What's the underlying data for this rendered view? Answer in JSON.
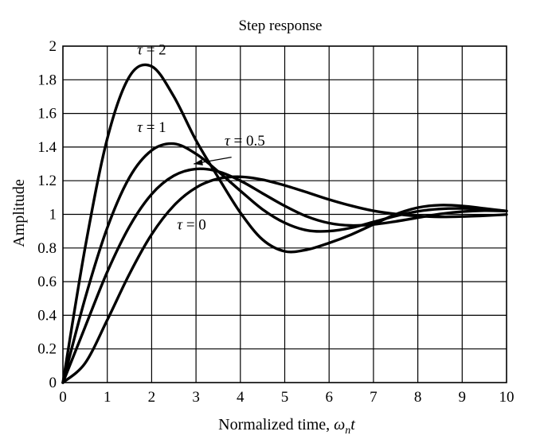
{
  "chart_data": {
    "type": "line",
    "title": "Step response",
    "xlabel_prefix": "Normalized time, ",
    "xlabel_var": "ω",
    "xlabel_sub": "n",
    "xlabel_suffix": "t",
    "ylabel": "Amplitude",
    "xlim": [
      0,
      10
    ],
    "ylim": [
      0,
      2
    ],
    "xticks": [
      "0",
      "1",
      "2",
      "3",
      "4",
      "5",
      "6",
      "7",
      "8",
      "9",
      "10"
    ],
    "yticks": [
      "0",
      "0.2",
      "0.4",
      "0.6",
      "0.8",
      "1",
      "1.2",
      "1.4",
      "1.6",
      "1.8",
      "2"
    ],
    "grid": true,
    "series": [
      {
        "name": "τ = 0",
        "tau": 0,
        "x": [
          0,
          0.5,
          1,
          1.5,
          2,
          2.5,
          3,
          3.5,
          4,
          4.5,
          5,
          5.5,
          6,
          6.5,
          7,
          7.5,
          8,
          8.5,
          9,
          9.5,
          10
        ],
        "y": [
          0,
          0.115,
          0.372,
          0.646,
          0.881,
          1.052,
          1.159,
          1.212,
          1.223,
          1.206,
          1.172,
          1.131,
          1.088,
          1.051,
          1.021,
          1.002,
          0.99,
          0.985,
          0.987,
          0.992,
          0.999
        ]
      },
      {
        "name": "τ = 0.5",
        "tau": 0.5,
        "x": [
          0,
          0.5,
          1,
          1.5,
          2,
          2.5,
          3,
          3.5,
          4,
          4.5,
          5,
          5.5,
          6,
          6.5,
          7,
          7.5,
          8,
          8.5,
          9,
          9.5,
          10
        ],
        "y": [
          0,
          0.33,
          0.658,
          0.928,
          1.12,
          1.23,
          1.27,
          1.255,
          1.2,
          1.125,
          1.05,
          0.987,
          0.948,
          0.934,
          0.94,
          0.958,
          0.98,
          1.002,
          1.016,
          1.022,
          1.02
        ]
      },
      {
        "name": "τ = 1",
        "tau": 1,
        "x": [
          0,
          0.5,
          1,
          1.5,
          2,
          2.5,
          3,
          3.5,
          4,
          4.5,
          5,
          5.5,
          6,
          6.5,
          7,
          7.5,
          8,
          8.5,
          9,
          9.5,
          10
        ],
        "y": [
          0,
          0.5,
          0.92,
          1.22,
          1.38,
          1.42,
          1.36,
          1.255,
          1.14,
          1.03,
          0.95,
          0.905,
          0.9,
          0.92,
          0.955,
          0.99,
          1.018,
          1.032,
          1.035,
          1.03,
          1.02
        ]
      },
      {
        "name": "τ = 2",
        "tau": 2,
        "x": [
          0,
          0.5,
          1,
          1.5,
          2,
          2.5,
          3,
          3.5,
          4,
          4.5,
          5,
          5.5,
          6,
          6.5,
          7,
          7.5,
          8,
          8.5,
          9,
          9.5,
          10
        ],
        "y": [
          0,
          0.8,
          1.45,
          1.82,
          1.88,
          1.7,
          1.44,
          1.22,
          1.01,
          0.85,
          0.78,
          0.79,
          0.83,
          0.88,
          0.94,
          1.0,
          1.04,
          1.055,
          1.05,
          1.035,
          1.02
        ]
      }
    ],
    "annotations": [
      {
        "text": "τ = 2",
        "x": 2.0,
        "y": 1.95
      },
      {
        "text": "τ = 1",
        "x": 2.0,
        "y": 1.49
      },
      {
        "text": "τ = 0.5",
        "x": 4.1,
        "y": 1.41
      },
      {
        "text": "τ = 0",
        "x": 2.9,
        "y": 0.91
      }
    ],
    "arrow": {
      "from": [
        3.8,
        1.34
      ],
      "to": [
        2.95,
        1.3
      ]
    }
  }
}
